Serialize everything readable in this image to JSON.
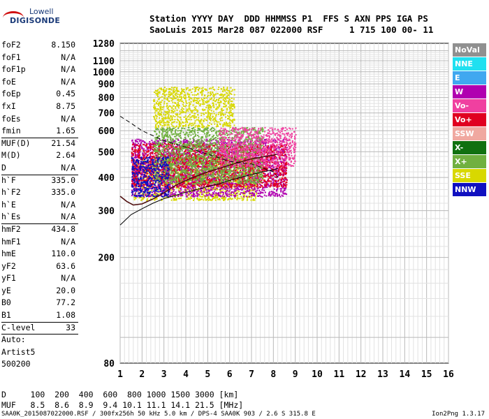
{
  "logo": {
    "line1": "Lowell",
    "line2": "DIGISONDE"
  },
  "header": {
    "labels": "Station YYYY DAY  DDD HHMMSS P1  FFS S AXN PPS IGA PS",
    "values": "SaoLuis 2015 Mar28 087 022000 RSF     1 715 100 00- 11"
  },
  "params": {
    "group1": [
      {
        "k": "foF2",
        "v": "8.150"
      },
      {
        "k": "foF1",
        "v": "N/A"
      },
      {
        "k": "foF1p",
        "v": "N/A"
      },
      {
        "k": "foE",
        "v": "N/A"
      },
      {
        "k": "foEp",
        "v": "0.45"
      },
      {
        "k": "fxI",
        "v": "8.75"
      },
      {
        "k": "foEs",
        "v": "N/A"
      },
      {
        "k": "fmin",
        "v": "1.65"
      }
    ],
    "group2": [
      {
        "k": "MUF(D)",
        "v": "21.54"
      },
      {
        "k": "M(D)",
        "v": "2.64"
      },
      {
        "k": "D",
        "v": "N/A"
      }
    ],
    "group3": [
      {
        "k": "h`F",
        "v": "335.0"
      },
      {
        "k": "h`F2",
        "v": "335.0"
      },
      {
        "k": "h`E",
        "v": "N/A"
      },
      {
        "k": "h`Es",
        "v": "N/A"
      }
    ],
    "group4": [
      {
        "k": "hmF2",
        "v": "434.8"
      },
      {
        "k": "hmF1",
        "v": "N/A"
      },
      {
        "k": "hmE",
        "v": "110.0"
      },
      {
        "k": "yF2",
        "v": "63.6"
      },
      {
        "k": "yF1",
        "v": "N/A"
      },
      {
        "k": "yE",
        "v": "20.0"
      },
      {
        "k": "B0",
        "v": "77.2"
      },
      {
        "k": "B1",
        "v": "1.08"
      }
    ],
    "clevel": {
      "k": "C-level",
      "v": "33"
    },
    "auto": [
      "Auto:",
      "Artist5",
      "500200"
    ]
  },
  "legend": [
    {
      "label": "NoVal",
      "color": "#909090"
    },
    {
      "label": "NNE",
      "color": "#20e0f0"
    },
    {
      "label": "E",
      "color": "#40a8f0"
    },
    {
      "label": "W",
      "color": "#b000b0"
    },
    {
      "label": "Vo-",
      "color": "#f040a0"
    },
    {
      "label": "Vo+",
      "color": "#e00020"
    },
    {
      "label": "SSW",
      "color": "#f0a8a0"
    },
    {
      "label": "X-",
      "color": "#107010"
    },
    {
      "label": "X+",
      "color": "#70b040"
    },
    {
      "label": "SSE",
      "color": "#d8d800"
    },
    {
      "label": "NNW",
      "color": "#1010c0"
    }
  ],
  "bottom": {
    "line1": "D     100  200  400  600  800 1000 1500 3000 [km]",
    "line2": "MUF   8.5  8.6  8.9  9.4 10.1 11.1 14.1 21.5 [MHz]"
  },
  "footer": "SAA0K_2015087022000.RSF / 300fx256h 50 kHz 5.0 km / DPS-4 SAA0K 903 / 2.6 S 315.8 E",
  "version": "Ion2Png 1.3.17",
  "chart_data": {
    "type": "scatter",
    "title": "",
    "xlabel": "",
    "ylabel": "",
    "xlim": [
      1,
      16
    ],
    "ylim": [
      80,
      1280
    ],
    "x_ticks": [
      1,
      2,
      3,
      4,
      5,
      6,
      7,
      8,
      9,
      10,
      11,
      12,
      13,
      14,
      15,
      16
    ],
    "y_ticks": [
      80,
      200,
      300,
      400,
      500,
      600,
      700,
      800,
      900,
      1000,
      1100,
      1280
    ],
    "y_scale": "log",
    "grid": true,
    "legend_position": "right",
    "traces": [
      {
        "name": "",
        "style": "solid",
        "x": [
          1.0,
          1.5,
          2.0,
          2.5,
          3.0,
          3.5,
          4.0,
          4.5,
          5.0,
          5.5,
          6.0,
          6.5,
          7.0,
          7.5,
          8.0,
          8.2
        ],
        "y": [
          265,
          290,
          305,
          320,
          333,
          342,
          352,
          360,
          370,
          378,
          390,
          400,
          410,
          420,
          428,
          432
        ]
      },
      {
        "name": "",
        "style": "solid-dark",
        "x": [
          1.0,
          1.3,
          1.6,
          2.0,
          2.5,
          3.0,
          3.5,
          4.0,
          4.5,
          5.0,
          5.5,
          6.0,
          6.5,
          7.0,
          7.5,
          8.0,
          8.15
        ],
        "y": [
          340,
          325,
          315,
          318,
          332,
          350,
          372,
          390,
          405,
          420,
          432,
          445,
          458,
          470,
          478,
          485,
          490
        ]
      },
      {
        "name": "",
        "style": "dashed",
        "x": [
          1.0,
          1.5,
          2.0,
          3.0,
          4.0,
          5.0,
          6.0,
          7.0,
          8.0,
          8.2
        ],
        "y": [
          680,
          640,
          600,
          550,
          520,
          490,
          460,
          450,
          420,
          400
        ]
      }
    ],
    "echo_bands": [
      {
        "series": "SSE",
        "x_range": [
          1.6,
          7.2
        ],
        "y_range": [
          330,
          480
        ]
      },
      {
        "series": "SSE",
        "x_range": [
          2.5,
          6.2
        ],
        "y_range": [
          620,
          880
        ]
      },
      {
        "series": "W",
        "x_range": [
          1.5,
          8.6
        ],
        "y_range": [
          340,
          560
        ]
      },
      {
        "series": "Vo+",
        "x_range": [
          1.5,
          8.6
        ],
        "y_range": [
          370,
          540
        ]
      },
      {
        "series": "X+",
        "x_range": [
          2.5,
          7.5
        ],
        "y_range": [
          380,
          620
        ]
      },
      {
        "series": "Vo-",
        "x_range": [
          5.5,
          9.0
        ],
        "y_range": [
          440,
          620
        ]
      },
      {
        "series": "NNW",
        "x_range": [
          1.5,
          3.2
        ],
        "y_range": [
          340,
          480
        ]
      }
    ]
  }
}
